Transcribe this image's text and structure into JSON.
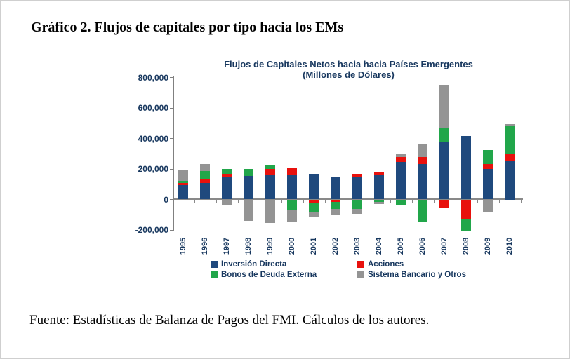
{
  "page": {
    "title": "Gráfico 2. Flujos de capitales por tipo hacia los EMs",
    "source_note": "Fuente: Estadísticas de Balanza de Pagos del FMI. Cálculos de los autores."
  },
  "chart_data": {
    "type": "bar",
    "stacked": true,
    "grid": false,
    "legend_position": "bottom",
    "title": "Flujos de Capitales Netos hacia hacia Países Emergentes",
    "subtitle": "(Millones de Dólares)",
    "xlabel": "",
    "ylabel": "",
    "ylim": [
      -210000,
      810000
    ],
    "y_ticks": [
      {
        "label": "800,000",
        "value": 800000
      },
      {
        "label": "600,000",
        "value": 600000
      },
      {
        "label": "400,000",
        "value": 400000
      },
      {
        "label": "200,000",
        "value": 200000
      },
      {
        "label": "0",
        "value": 0
      },
      {
        "label": "-200,000",
        "value": -200000
      }
    ],
    "categories": [
      "1995",
      "1996",
      "1997",
      "1998",
      "1999",
      "2000",
      "2001",
      "2002",
      "2003",
      "2004",
      "2005",
      "2006",
      "2007",
      "2008",
      "2009",
      "2010"
    ],
    "series": [
      {
        "name": "Inversión Directa",
        "color": "#1F497D",
        "values": [
          95000,
          108000,
          148000,
          155000,
          165000,
          160000,
          168000,
          145000,
          143000,
          160000,
          245000,
          230000,
          378000,
          415000,
          202000,
          250000
        ]
      },
      {
        "name": "Acciones",
        "color": "#E8110D",
        "values": [
          13000,
          28000,
          18000,
          0,
          37000,
          50000,
          -26000,
          -18000,
          26000,
          15000,
          34000,
          48000,
          -57000,
          -130000,
          28000,
          48000
        ]
      },
      {
        "name": "Bonos de Deuda Externa",
        "color": "#21A64A",
        "values": [
          15000,
          48000,
          36000,
          45000,
          23000,
          -70000,
          -57000,
          -46000,
          -60000,
          -18000,
          -37000,
          -148000,
          95000,
          -80000,
          92000,
          182000
        ]
      },
      {
        "name": "Sistema Bancario y Otros",
        "color": "#949494",
        "values": [
          72000,
          48000,
          -37000,
          -140000,
          -155000,
          -77000,
          -32000,
          -34000,
          -35000,
          -11000,
          18000,
          88000,
          280000,
          0,
          -85000,
          15000
        ]
      }
    ]
  },
  "axis_colors": {
    "text": "#17375E",
    "line": "#808080"
  }
}
